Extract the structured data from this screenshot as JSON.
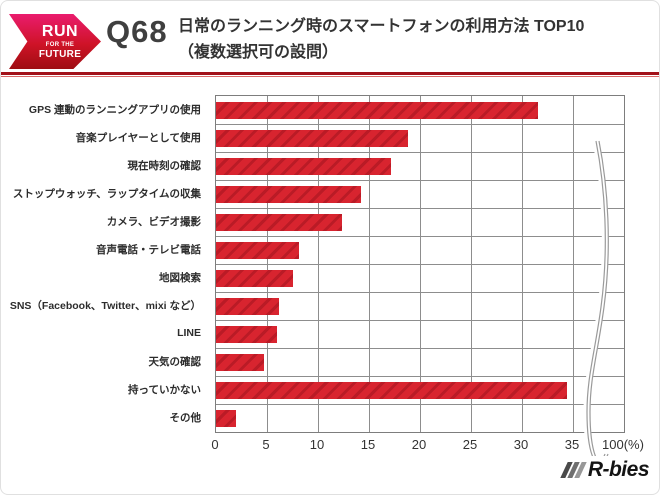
{
  "header": {
    "logo": {
      "line1": "RUN",
      "line2": "FOR THE",
      "line3": "FUTURE"
    },
    "question_number": "Q68",
    "title_line1": "日常のランニング時のスマートフォンの利用方法 TOP10",
    "title_line2": "（複数選択可の設問）"
  },
  "chart_data": {
    "type": "bar",
    "orientation": "horizontal",
    "title": "日常のランニング時のスマートフォンの利用方法 TOP10（複数選択可の設問）",
    "unit": "%",
    "categories": [
      "GPS 連動のランニングアプリの使用",
      "音楽プレイヤーとして使用",
      "現在時刻の確認",
      "ストップウォッチ、ラップタイムの収集",
      "カメラ、ビデオ撮影",
      "音声電話・テレビ電話",
      "地図検索",
      "SNS（Facebook、Twitter、mixi など）",
      "LINE",
      "天気の確認",
      "持っていかない",
      "その他"
    ],
    "values": [
      31.6,
      18.8,
      17.2,
      14.2,
      12.4,
      8.1,
      7.5,
      6.2,
      6.0,
      4.7,
      34.4,
      2.0
    ],
    "x_tick_labels": [
      "0",
      "5",
      "10",
      "15",
      "20",
      "25",
      "30",
      "35",
      "100(%)"
    ],
    "x_tick_values": [
      0,
      5,
      10,
      15,
      20,
      25,
      30,
      35,
      100
    ],
    "axis_break_between": [
      35,
      100
    ],
    "grid": true,
    "legend": false,
    "bar_color": "#d8242f",
    "bar_hatch_color": "#ba1b26",
    "grid_color": "#8d8d8d"
  },
  "footer": {
    "brand": "R-bies"
  }
}
